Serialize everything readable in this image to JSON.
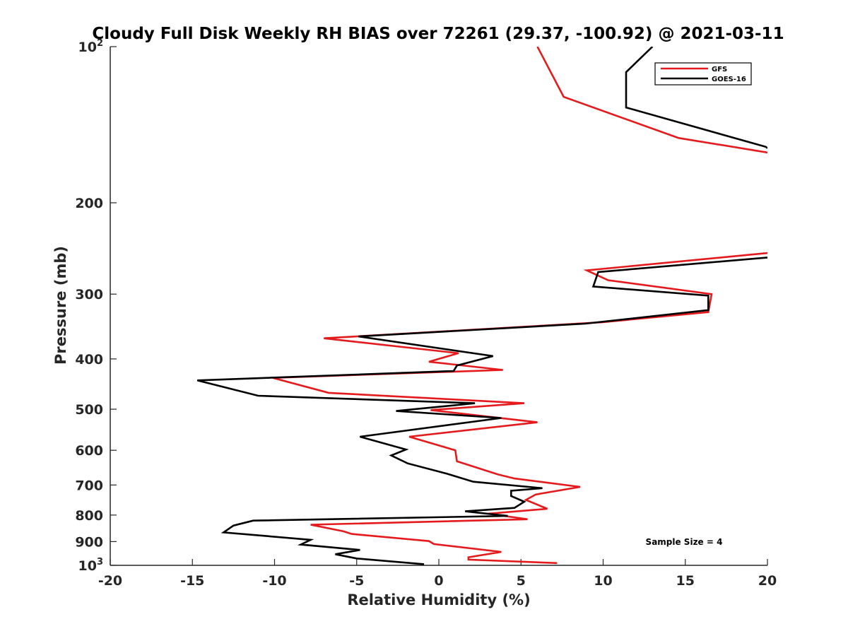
{
  "chart_data": {
    "type": "line",
    "title": "Cloudy Full Disk Weekly RH BIAS over 72261 (29.37, -100.92) @ 2021-03-11",
    "xlabel": "Relative Humidity (%)",
    "ylabel": "Pressure (mb)",
    "xlim": [
      -20,
      20
    ],
    "ylim": [
      100,
      1000
    ],
    "y_scale": "log",
    "y_reversed": true,
    "grid": false,
    "legend_position": "top-right",
    "x_ticks": [
      "-20",
      "-15",
      "-10",
      "-5",
      "0",
      "5",
      "10",
      "15",
      "20"
    ],
    "y_ticks": [
      {
        "value": 100,
        "label": "10",
        "sup": "2"
      },
      {
        "value": 200,
        "label": "200",
        "sup": ""
      },
      {
        "value": 300,
        "label": "300",
        "sup": ""
      },
      {
        "value": 400,
        "label": "400",
        "sup": ""
      },
      {
        "value": 500,
        "label": "500",
        "sup": ""
      },
      {
        "value": 600,
        "label": "600",
        "sup": ""
      },
      {
        "value": 700,
        "label": "700",
        "sup": ""
      },
      {
        "value": 800,
        "label": "800",
        "sup": ""
      },
      {
        "value": 900,
        "label": "900",
        "sup": ""
      },
      {
        "value": 1000,
        "label": "10",
        "sup": "3"
      }
    ],
    "annotation": "Sample Size = 4",
    "series": [
      {
        "name": "GFS",
        "color": "#e41a1c",
        "segments": [
          [
            [
              6.0,
              100
            ],
            [
              7.6,
              125
            ],
            [
              14.6,
              150
            ],
            [
              20.0,
              160
            ]
          ],
          [
            [
              20.0,
              250
            ],
            [
              9.0,
              270
            ],
            [
              10.3,
              282
            ],
            [
              16.6,
              300
            ],
            [
              16.4,
              325
            ],
            [
              9.9,
              340
            ],
            [
              -7.0,
              365
            ],
            [
              1.2,
              390
            ],
            [
              -0.6,
              405
            ],
            [
              3.9,
              420
            ],
            [
              -10.1,
              435
            ],
            [
              -6.7,
              465
            ],
            [
              5.2,
              487
            ],
            [
              -0.5,
              502
            ],
            [
              6.0,
              530
            ],
            [
              -1.8,
              565
            ],
            [
              1.0,
              600
            ],
            [
              1.1,
              630
            ],
            [
              3.6,
              668
            ],
            [
              4.6,
              680
            ],
            [
              8.6,
              706
            ],
            [
              5.9,
              730
            ],
            [
              5.3,
              748
            ],
            [
              6.6,
              778
            ],
            [
              3.0,
              795
            ],
            [
              5.4,
              815
            ],
            [
              -7.8,
              835
            ],
            [
              -5.8,
              860
            ],
            [
              -5.3,
              870
            ],
            [
              -0.6,
              898
            ],
            [
              -0.3,
              910
            ],
            [
              3.8,
              942
            ],
            [
              1.8,
              965
            ],
            [
              1.8,
              975
            ],
            [
              7.2,
              990
            ]
          ]
        ]
      },
      {
        "name": "GOES-16",
        "color": "#000000",
        "segments": [
          [
            [
              13.0,
              100
            ],
            [
              11.4,
              112
            ],
            [
              11.4,
              131
            ],
            [
              19.9,
              156
            ],
            [
              20.0,
              157
            ]
          ],
          [
            [
              20.0,
              255
            ],
            [
              9.7,
              272
            ],
            [
              9.4,
              290
            ],
            [
              16.4,
              302
            ],
            [
              16.4,
              322
            ],
            [
              8.9,
              342
            ],
            [
              -4.9,
              362
            ],
            [
              3.3,
              395
            ],
            [
              1.1,
              412
            ],
            [
              0.9,
              422
            ],
            [
              -14.7,
              440
            ],
            [
              -11.0,
              471
            ],
            [
              2.2,
              487
            ],
            [
              -2.6,
              504
            ],
            [
              3.8,
              520
            ],
            [
              -4.8,
              565
            ],
            [
              -2.0,
              598
            ],
            [
              -2.9,
              614
            ],
            [
              -1.9,
              636
            ],
            [
              0.5,
              666
            ],
            [
              2.1,
              690
            ],
            [
              6.3,
              710
            ],
            [
              4.4,
              718
            ],
            [
              4.4,
              735
            ],
            [
              5.2,
              754
            ],
            [
              4.6,
              775
            ],
            [
              1.6,
              787
            ],
            [
              4.2,
              803
            ],
            [
              -11.3,
              820
            ],
            [
              -12.5,
              838
            ],
            [
              -13.1,
              864
            ],
            [
              -7.8,
              893
            ],
            [
              -8.4,
              912
            ],
            [
              -4.8,
              934
            ],
            [
              -6.3,
              952
            ],
            [
              -5.0,
              970
            ],
            [
              -0.9,
              995
            ]
          ]
        ]
      }
    ]
  }
}
